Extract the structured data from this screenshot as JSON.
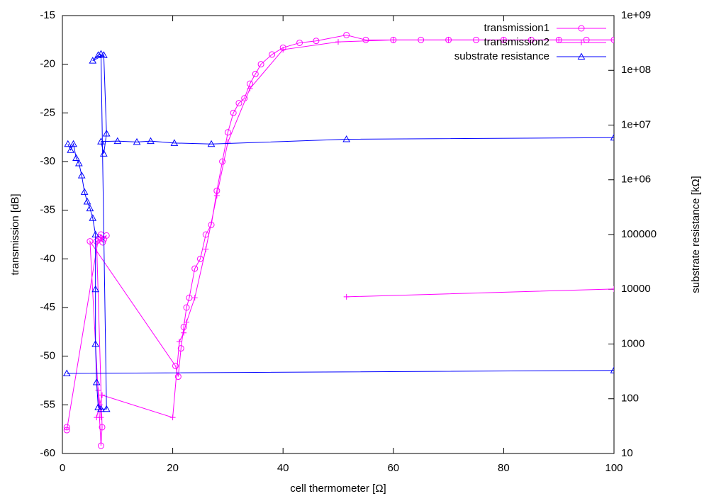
{
  "chart_data": {
    "type": "line",
    "xlabel": "cell thermometer [Ω]",
    "ylabel": "transmission [dB]",
    "y2label": "substrate resistance [kΩ]",
    "xlim": [
      0,
      100
    ],
    "xticks": [
      0,
      20,
      40,
      60,
      80,
      100
    ],
    "ylim": [
      -60,
      -15
    ],
    "yticks": [
      -60,
      -55,
      -50,
      -45,
      -40,
      -35,
      -30,
      -25,
      -20,
      -15
    ],
    "y2lim": [
      10,
      1000000000
    ],
    "y2log": true,
    "y2ticks": [
      10,
      100,
      1000,
      10000,
      100000,
      {
        "value": 1000000,
        "label": "1e+06"
      },
      {
        "value": 10000000,
        "label": "1e+07"
      },
      {
        "value": 100000000,
        "label": "1e+08"
      },
      {
        "value": 1000000000,
        "label": "1e+09"
      }
    ],
    "legend": "top-right",
    "series": [
      {
        "name": "transmission1",
        "color": "#ff00ff",
        "marker": "circle",
        "x": [
          0.8,
          0.8,
          6.5,
          7.0,
          7.3,
          6.8,
          7.5,
          8.0,
          6.2,
          7.2,
          7.0,
          5.0,
          20.5,
          21.0,
          21.5,
          22.0,
          22.5,
          23.0,
          24.0,
          25.0,
          26.0,
          27.0,
          28.0,
          29.0,
          30.0,
          31.0,
          32.0,
          33.0,
          34.0,
          35.0,
          36.0,
          38.0,
          40.0,
          43.0,
          46.0,
          51.5,
          55.0,
          60.0,
          65.0,
          70.0,
          75.0,
          80.0,
          85.0,
          90.0,
          95.0,
          100.0
        ],
        "values": [
          -57.3,
          -57.6,
          -38.0,
          -37.5,
          -38.3,
          -37.8,
          -38.0,
          -37.6,
          -38.2,
          -57.3,
          -59.2,
          -38.2,
          -51.0,
          -52.1,
          -49.2,
          -47.0,
          -45.0,
          -44.0,
          -41.0,
          -40.0,
          -37.5,
          -36.5,
          -33.0,
          -30.0,
          -27.0,
          -25.0,
          -24.0,
          -23.5,
          -22.0,
          -21.0,
          -20.0,
          -19.0,
          -18.3,
          -17.8,
          -17.6,
          -17.0,
          -17.5,
          -17.5,
          -17.5,
          -17.5,
          -17.5,
          -17.5,
          -17.5,
          -17.5,
          -17.5,
          -17.5
        ]
      },
      {
        "name": "transmission2",
        "color": "#ff00ff",
        "marker": "plus",
        "x": [
          51.5,
          100.0,
          null,
          6.5,
          6.8,
          7.0,
          6.2,
          7.2,
          20.0,
          21.2,
          22.0,
          22.5,
          24.0,
          26.0,
          28.0,
          30.0,
          34.0,
          40.0,
          50.0,
          60.0,
          70.0,
          80.0,
          90.0,
          100.0
        ],
        "values": [
          -43.9,
          -43.1,
          null,
          -53.5,
          -55.0,
          -56.3,
          -56.3,
          -54.0,
          -56.3,
          -48.5,
          -47.6,
          -46.5,
          -44.0,
          -39.0,
          -33.5,
          -28.0,
          -22.5,
          -18.5,
          -17.7,
          -17.5,
          -17.5,
          -17.5,
          -17.5,
          -17.5
        ]
      },
      {
        "name": "substrate resistance",
        "color": "#0000ff",
        "marker": "triangle",
        "axis": "y2",
        "x": [
          0.8,
          100.0,
          null,
          1.0,
          1.5,
          2.0,
          2.5,
          3.0,
          3.5,
          4.0,
          4.5,
          5.0,
          5.5,
          6.0,
          6.0,
          6.0,
          6.2,
          6.5,
          7.0,
          8.0,
          7.0,
          6.5,
          5.5,
          7.5,
          8.0,
          7.5,
          7.0,
          10.0,
          13.5,
          16.0,
          20.3,
          27.0,
          51.5,
          100.0
        ],
        "values": [
          290,
          330,
          null,
          4500000,
          3500000,
          4500000,
          2500000,
          2000000,
          1200000,
          600000,
          400000,
          300000,
          200000,
          100000,
          10000,
          1000,
          200,
          70,
          65,
          65,
          200000000,
          190000000,
          150000000,
          190000000,
          7000000,
          3000000,
          5000000,
          5100000,
          4900000,
          5100000,
          4700000,
          4500000,
          5500000,
          5900000
        ]
      }
    ]
  }
}
